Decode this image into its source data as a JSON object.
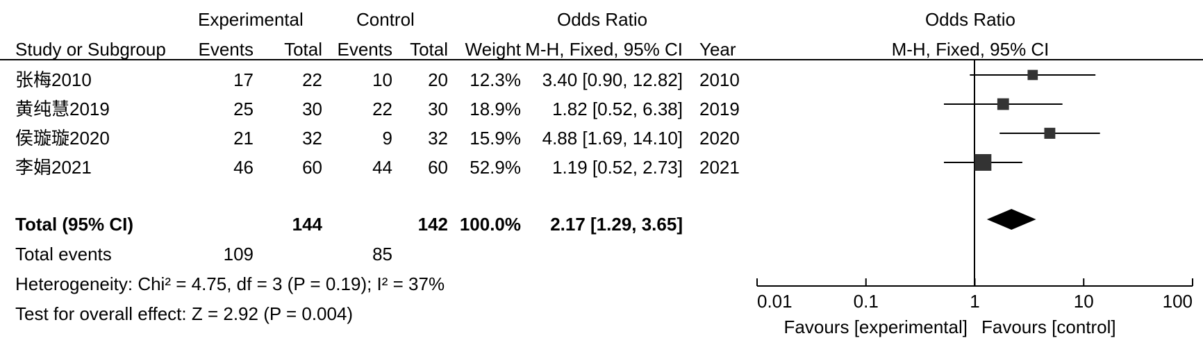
{
  "headers": {
    "experimental": "Experimental",
    "control": "Control",
    "odds_ratio": "Odds Ratio",
    "study": "Study or Subgroup",
    "events": "Events",
    "total": "Total",
    "weight": "Weight",
    "method": "M-H, Fixed, 95% CI",
    "year": "Year",
    "plot_title": "Odds Ratio",
    "plot_method": "M-H, Fixed, 95% CI"
  },
  "studies": [
    {
      "name": "张梅2010",
      "exp_events": "17",
      "exp_total": "22",
      "ctl_events": "10",
      "ctl_total": "20",
      "weight": "12.3%",
      "ci_text": "3.40 [0.90, 12.82]",
      "year": "2010"
    },
    {
      "name": "黄纯慧2019",
      "exp_events": "25",
      "exp_total": "30",
      "ctl_events": "22",
      "ctl_total": "30",
      "weight": "18.9%",
      "ci_text": "1.82 [0.52, 6.38]",
      "year": "2019"
    },
    {
      "name": "侯璇璇2020",
      "exp_events": "21",
      "exp_total": "32",
      "ctl_events": "9",
      "ctl_total": "32",
      "weight": "15.9%",
      "ci_text": "4.88 [1.69, 14.10]",
      "year": "2020"
    },
    {
      "name": "李娟2021",
      "exp_events": "46",
      "exp_total": "60",
      "ctl_events": "44",
      "ctl_total": "60",
      "weight": "52.9%",
      "ci_text": "1.19 [0.52, 2.73]",
      "year": "2021"
    }
  ],
  "total": {
    "label": "Total (95% CI)",
    "exp_total": "144",
    "ctl_total": "142",
    "weight": "100.0%",
    "ci_text": "2.17 [1.29, 3.65]"
  },
  "total_events": {
    "label": "Total events",
    "exp": "109",
    "ctl": "85"
  },
  "heterogeneity": "Heterogeneity: Chi² = 4.75, df = 3 (P = 0.19); I² = 37%",
  "overall_effect": "Test for overall effect: Z = 2.92 (P = 0.004)",
  "axis": {
    "ticks": [
      "0.01",
      "0.1",
      "1",
      "10",
      "100"
    ],
    "favours_left": "Favours [experimental]",
    "favours_right": "Favours [control]"
  },
  "chart_data": {
    "type": "forest",
    "scale": "log",
    "xlim": [
      0.01,
      100
    ],
    "null_line": 1,
    "studies": [
      {
        "label": "张梅2010",
        "or": 3.4,
        "lo": 0.9,
        "hi": 12.82,
        "weight": 12.3
      },
      {
        "label": "黄纯慧2019",
        "or": 1.82,
        "lo": 0.52,
        "hi": 6.38,
        "weight": 18.9
      },
      {
        "label": "侯璇璇2020",
        "or": 4.88,
        "lo": 1.69,
        "hi": 14.1,
        "weight": 15.9
      },
      {
        "label": "李娟2021",
        "or": 1.19,
        "lo": 0.52,
        "hi": 2.73,
        "weight": 52.9
      }
    ],
    "pooled": {
      "or": 2.17,
      "lo": 1.29,
      "hi": 3.65
    }
  },
  "colors": {
    "ink": "#000000",
    "marker": "#333333"
  }
}
